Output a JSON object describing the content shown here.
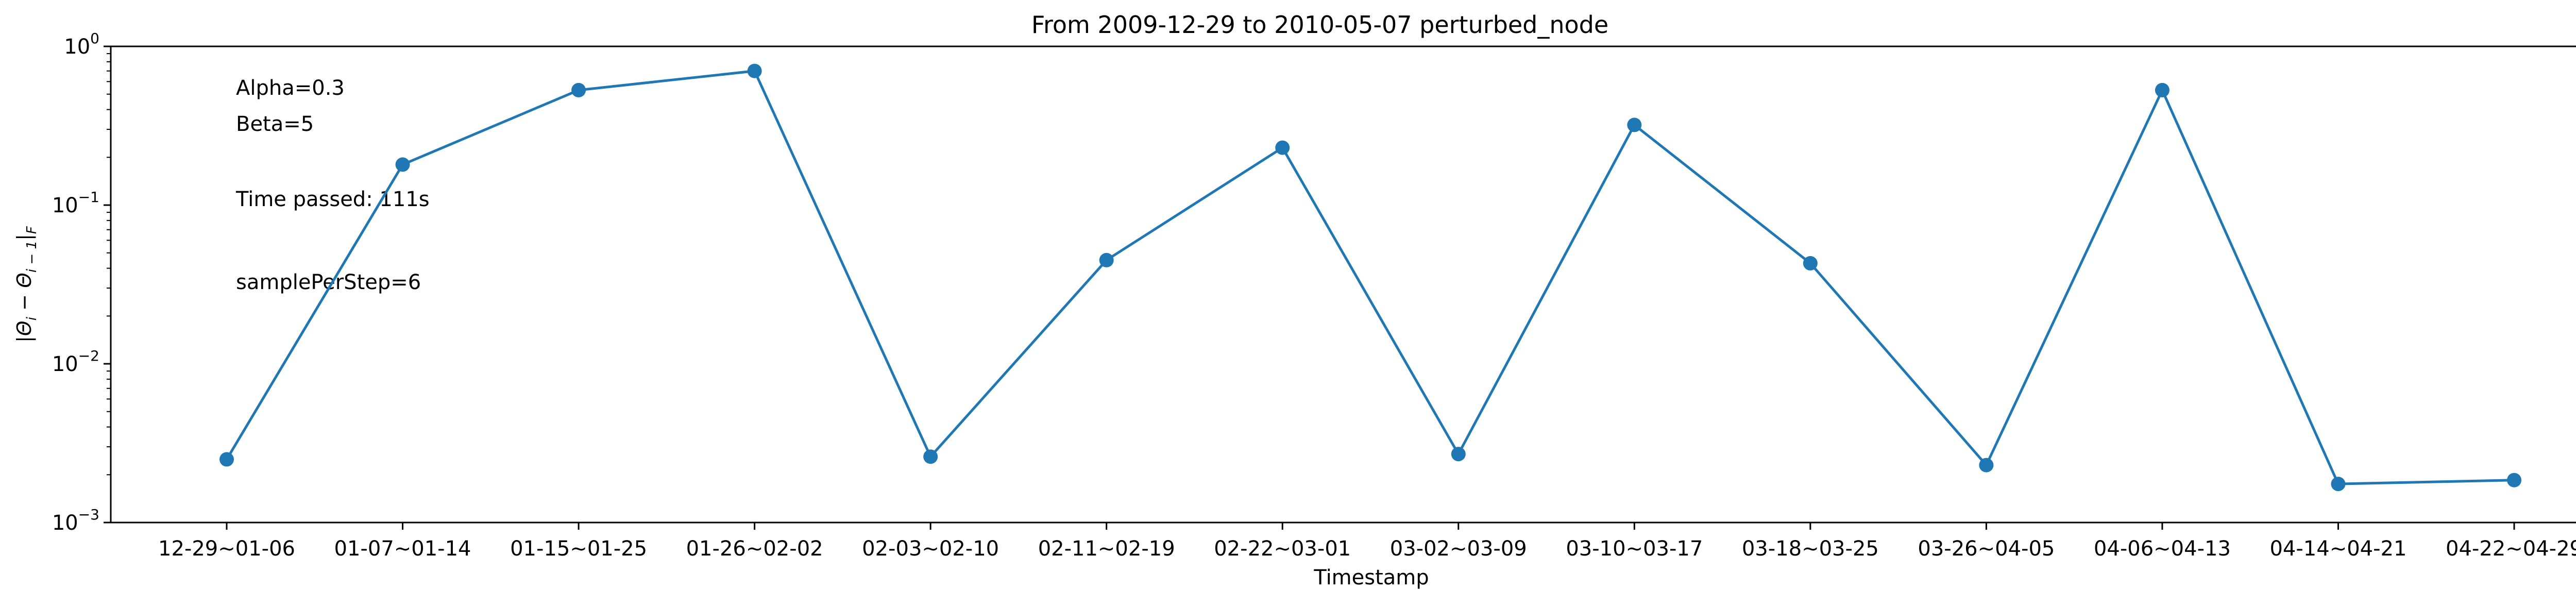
{
  "chart_data": {
    "type": "line",
    "title": "From 2009-12-29 to 2010-05-07 perturbed_node",
    "xlabel": "Timestamp",
    "ylabel": "|Θ_i − Θ_{i−1}|_F",
    "ylabel_parts": {
      "theta": "Θ",
      "i": "i",
      "minus": " − ",
      "im1": "i − 1",
      "F": "F"
    },
    "y_scale": "log",
    "ylim": [
      0.001,
      1
    ],
    "y_ticks": [
      {
        "value": 0.001,
        "base": "10",
        "exp": "−3"
      },
      {
        "value": 0.01,
        "base": "10",
        "exp": "−2"
      },
      {
        "value": 0.1,
        "base": "10",
        "exp": "−1"
      },
      {
        "value": 1,
        "base": "10",
        "exp": "0"
      }
    ],
    "grid": false,
    "categories": [
      "12-29~01-06",
      "01-07~01-14",
      "01-15~01-25",
      "01-26~02-02",
      "02-03~02-10",
      "02-11~02-19",
      "02-22~03-01",
      "03-02~03-09",
      "03-10~03-17",
      "03-18~03-25",
      "03-26~04-05",
      "04-06~04-13",
      "04-14~04-21",
      "04-22~04-29"
    ],
    "series": [
      {
        "color": "#1f77b4",
        "values": [
          0.0025,
          0.18,
          0.53,
          0.7,
          0.0026,
          0.045,
          0.23,
          0.0027,
          0.32,
          0.043,
          0.0023,
          0.53,
          0.00175,
          0.00185
        ]
      }
    ],
    "annotations": [
      "Alpha=0.3",
      "Beta=5",
      "Time passed: 111s",
      "samplePerStep=6"
    ]
  }
}
